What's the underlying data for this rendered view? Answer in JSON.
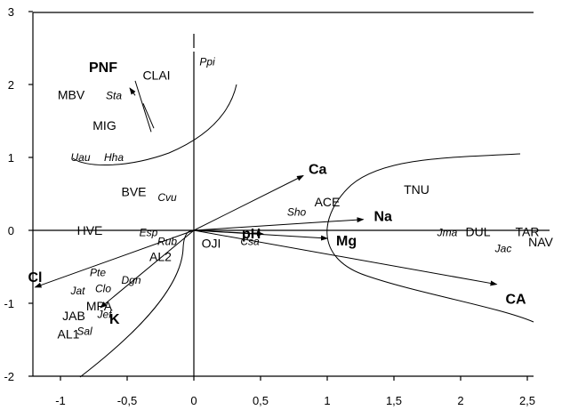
{
  "chart_data": {
    "type": "scatter",
    "xlim": [
      -1.3,
      2.6
    ],
    "ylim": [
      -2,
      3
    ],
    "x_ticks": [
      "-1",
      "-0,5",
      "0",
      "0,5",
      "1",
      "1,5",
      "2",
      "2,5"
    ],
    "x_tick_values": [
      -1,
      -0.5,
      0,
      0.5,
      1,
      1.5,
      2,
      2.5
    ],
    "y_ticks": [
      "3",
      "2",
      "1",
      "0",
      "-1",
      "-2"
    ],
    "y_tick_values": [
      3,
      2,
      1,
      0,
      -1,
      -2
    ],
    "env_vectors": [
      {
        "label": "Ca",
        "x": 0.82,
        "y": 0.75
      },
      {
        "label": "Na",
        "x": 1.27,
        "y": 0.15
      },
      {
        "label": "pH",
        "x": 0.52,
        "y": -0.05
      },
      {
        "label": "Mg",
        "x": 1.0,
        "y": -0.11
      },
      {
        "label": "CA",
        "x": 2.27,
        "y": -0.74
      },
      {
        "label": "Cl",
        "x": -1.19,
        "y": -0.78
      },
      {
        "label": "K",
        "x": -0.7,
        "y": -1.06
      },
      {
        "label": "PNF",
        "x": -0.44,
        "y": 2.05
      }
    ],
    "sites": [
      {
        "label": "PNF",
        "x": -0.68,
        "y": 2.17,
        "bold": true
      },
      {
        "label": "CLAI",
        "x": -0.28,
        "y": 2.07
      },
      {
        "label": "MBV",
        "x": -0.92,
        "y": 1.8
      },
      {
        "label": "MIG",
        "x": -0.67,
        "y": 1.38
      },
      {
        "label": "BVE",
        "x": -0.45,
        "y": 0.47
      },
      {
        "label": "ACE",
        "x": 1.0,
        "y": 0.33
      },
      {
        "label": "TNU",
        "x": 1.67,
        "y": 0.5
      },
      {
        "label": "HVE",
        "x": -0.78,
        "y": -0.06
      },
      {
        "label": "OJI",
        "x": 0.13,
        "y": -0.24
      },
      {
        "label": "AL2",
        "x": -0.25,
        "y": -0.42
      },
      {
        "label": "MPA",
        "x": -0.71,
        "y": -1.1
      },
      {
        "label": "JAB",
        "x": -0.9,
        "y": -1.23
      },
      {
        "label": "AL1",
        "x": -0.94,
        "y": -1.48
      },
      {
        "label": "DUL",
        "x": 2.13,
        "y": -0.08
      },
      {
        "label": "TAR",
        "x": 2.5,
        "y": -0.08
      },
      {
        "label": "NAV",
        "x": 2.6,
        "y": -0.22
      }
    ],
    "species": [
      {
        "label": "Ppi",
        "x": 0.1,
        "y": 2.26
      },
      {
        "label": "Sta",
        "x": -0.6,
        "y": 1.8
      },
      {
        "label": "Uau",
        "x": -0.85,
        "y": 0.95
      },
      {
        "label": "Hha",
        "x": -0.6,
        "y": 0.95
      },
      {
        "label": "Cvu",
        "x": -0.2,
        "y": 0.4
      },
      {
        "label": "Sho",
        "x": 0.77,
        "y": 0.2
      },
      {
        "label": "Jma",
        "x": 1.9,
        "y": -0.08
      },
      {
        "label": "Jac",
        "x": 2.32,
        "y": -0.3
      },
      {
        "label": "Esp",
        "x": -0.34,
        "y": -0.08
      },
      {
        "label": "Rub",
        "x": -0.2,
        "y": -0.2
      },
      {
        "label": "Csa",
        "x": 0.42,
        "y": -0.2
      },
      {
        "label": "Pte",
        "x": -0.72,
        "y": -0.63
      },
      {
        "label": "Dgn",
        "x": -0.47,
        "y": -0.73
      },
      {
        "label": "Jat",
        "x": -0.87,
        "y": -0.88
      },
      {
        "label": "Clo",
        "x": -0.68,
        "y": -0.85
      },
      {
        "label": "Jef",
        "x": -0.67,
        "y": -1.2
      },
      {
        "label": "Sal",
        "x": -0.82,
        "y": -1.43
      }
    ]
  }
}
